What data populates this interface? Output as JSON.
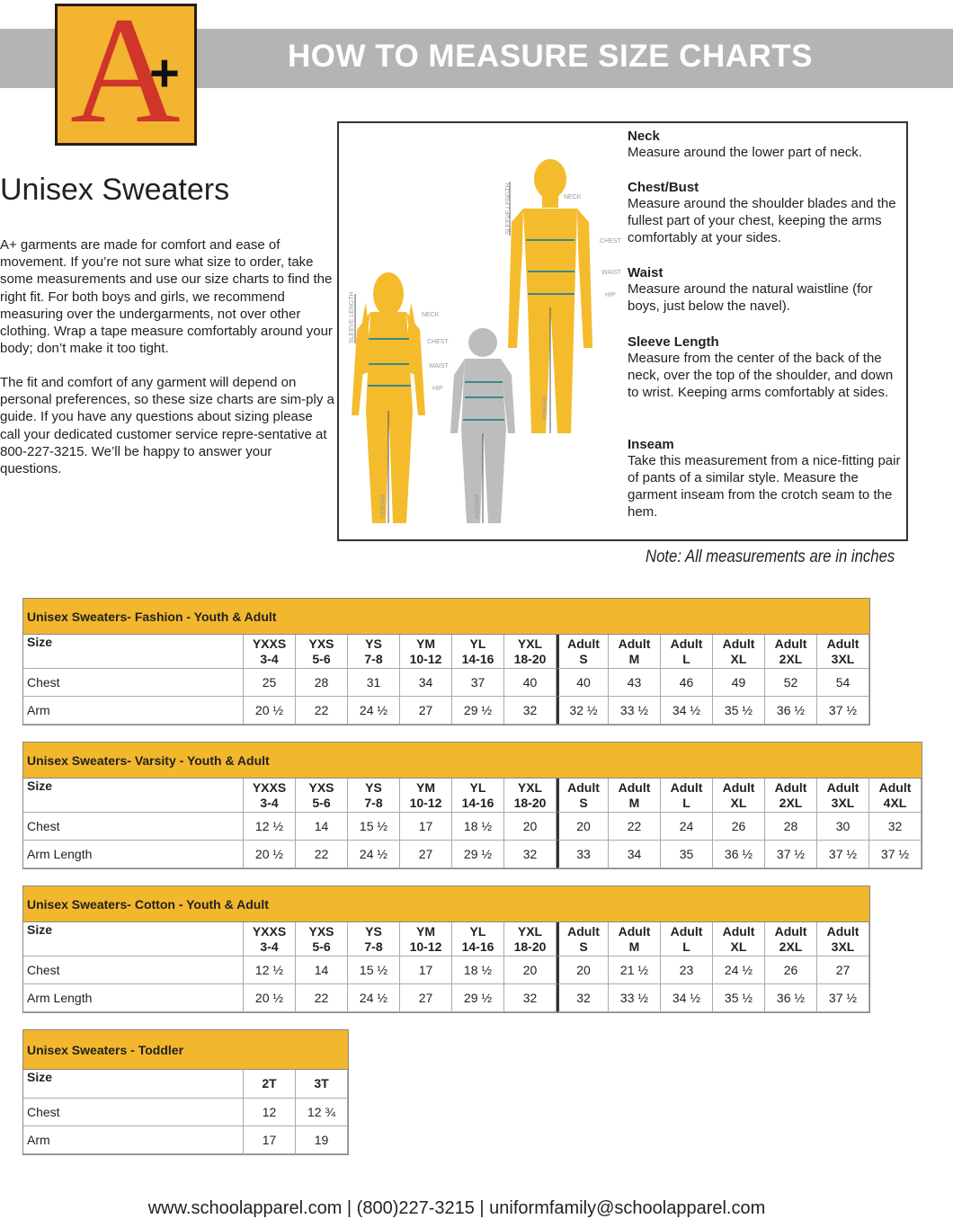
{
  "logo": {
    "letter": "A",
    "plus": "+"
  },
  "header": {
    "title": "HOW TO MEASURE SIZE CHARTS"
  },
  "intro": {
    "heading": "Unisex Sweaters",
    "paragraphs": [
      "A+ garments are made for comfort and ease of movement. If you’re not sure what size to order, take some measurements and use our size charts to find the right fit. For both boys and girls, we recommend measuring over the undergarments, not over other clothing. Wrap a tape measure comfortably around your body; don’t make it too tight.",
      "The fit and comfort of any garment will depend on personal preferences, so these size charts are sim-ply a guide. If you have any questions about sizing please call your dedicated customer service repre-sentative at 800-227-3215. We’ll be happy to answer your questions."
    ]
  },
  "figure_labels": {
    "neck": "NECK",
    "chest": "CHEST",
    "waist": "WAIST",
    "hip": "HIP",
    "inseam": "INSEAM",
    "sleeve_length": "SLEEVE LENGTH"
  },
  "measures": [
    {
      "name": "Neck",
      "text": "Measure around the lower part of neck."
    },
    {
      "name": "Chest/Bust",
      "text": "Measure around the shoulder blades and the fullest part of your chest, keeping the arms comfortably at your sides."
    },
    {
      "name": "Waist",
      "text": "Measure around the natural waistline (for boys, just below the navel)."
    },
    {
      "name": "Sleeve Length",
      "text": "Measure from the center of the back of the neck, over the top of the shoulder, and down to wrist. Keeping arms comfortably at sides."
    },
    {
      "name": "Inseam",
      "text": "Take this measurement from a nice-fitting pair of pants of a similar style. Measure the garment inseam from the crotch seam to the hem."
    }
  ],
  "note": "Note: All measurements are in inches",
  "tables": [
    {
      "title": "Unisex Sweaters- Fashion - Youth & Adult",
      "header": [
        [
          "Size"
        ],
        [
          "YXXS",
          "3-4"
        ],
        [
          "YXS",
          "5-6"
        ],
        [
          "YS",
          "7-8"
        ],
        [
          "YM",
          "10-12"
        ],
        [
          "YL",
          "14-16"
        ],
        [
          "YXL",
          "18-20"
        ],
        [
          "Adult",
          "S"
        ],
        [
          "Adult",
          "M"
        ],
        [
          "Adult",
          "L"
        ],
        [
          "Adult",
          "XL"
        ],
        [
          "Adult",
          "2XL"
        ],
        [
          "Adult",
          "3XL"
        ]
      ],
      "rows": [
        [
          "Chest",
          "25",
          "28",
          "31",
          "34",
          "37",
          "40",
          "40",
          "43",
          "46",
          "49",
          "52",
          "54"
        ],
        [
          "Arm",
          "20 ½",
          "22",
          "24 ½",
          "27",
          "29 ½",
          "32",
          "32 ½",
          "33 ½",
          "34 ½",
          "35 ½",
          "36 ½",
          "37 ½"
        ]
      ]
    },
    {
      "title": "Unisex Sweaters- Varsity - Youth & Adult",
      "header": [
        [
          "Size"
        ],
        [
          "YXXS",
          "3-4"
        ],
        [
          "YXS",
          "5-6"
        ],
        [
          "YS",
          "7-8"
        ],
        [
          "YM",
          "10-12"
        ],
        [
          "YL",
          "14-16"
        ],
        [
          "YXL",
          "18-20"
        ],
        [
          "Adult",
          "S"
        ],
        [
          "Adult",
          "M"
        ],
        [
          "Adult",
          "L"
        ],
        [
          "Adult",
          "XL"
        ],
        [
          "Adult",
          "2XL"
        ],
        [
          "Adult",
          "3XL"
        ],
        [
          "Adult",
          "4XL"
        ]
      ],
      "rows": [
        [
          "Chest",
          "12 ½",
          "14",
          "15 ½",
          "17",
          "18 ½",
          "20",
          "20",
          "22",
          "24",
          "26",
          "28",
          "30",
          "32"
        ],
        [
          "Arm Length",
          "20 ½",
          "22",
          "24 ½",
          "27",
          "29 ½",
          "32",
          "33",
          "34",
          "35",
          "36 ½",
          "37 ½",
          "37 ½",
          "37 ½"
        ]
      ]
    },
    {
      "title": "Unisex Sweaters- Cotton - Youth & Adult",
      "header": [
        [
          "Size"
        ],
        [
          "YXXS",
          "3-4"
        ],
        [
          "YXS",
          "5-6"
        ],
        [
          "YS",
          "7-8"
        ],
        [
          "YM",
          "10-12"
        ],
        [
          "YL",
          "14-16"
        ],
        [
          "YXL",
          "18-20"
        ],
        [
          "Adult",
          "S"
        ],
        [
          "Adult",
          "M"
        ],
        [
          "Adult",
          "L"
        ],
        [
          "Adult",
          "XL"
        ],
        [
          "Adult",
          "2XL"
        ],
        [
          "Adult",
          "3XL"
        ]
      ],
      "rows": [
        [
          "Chest",
          "12 ½",
          "14",
          "15 ½",
          "17",
          "18 ½",
          "20",
          "20",
          "21 ½",
          "23",
          "24 ½",
          "26",
          "27"
        ],
        [
          "Arm Length",
          "20 ½",
          "22",
          "24 ½",
          "27",
          "29 ½",
          "32",
          "32",
          "33 ½",
          "34 ½",
          "35 ½",
          "36 ½",
          "37 ½"
        ]
      ]
    },
    {
      "title": "Unisex Sweaters - Toddler",
      "header": [
        [
          "Size"
        ],
        [
          "2T"
        ],
        [
          "3T"
        ]
      ],
      "rows": [
        [
          "Chest",
          "12",
          "12 ¾"
        ],
        [
          "Arm",
          "17",
          "19"
        ]
      ]
    }
  ],
  "footer": "www.schoolapparel.com | (800)227-3215 | uniformfamily@schoolapparel.com"
}
